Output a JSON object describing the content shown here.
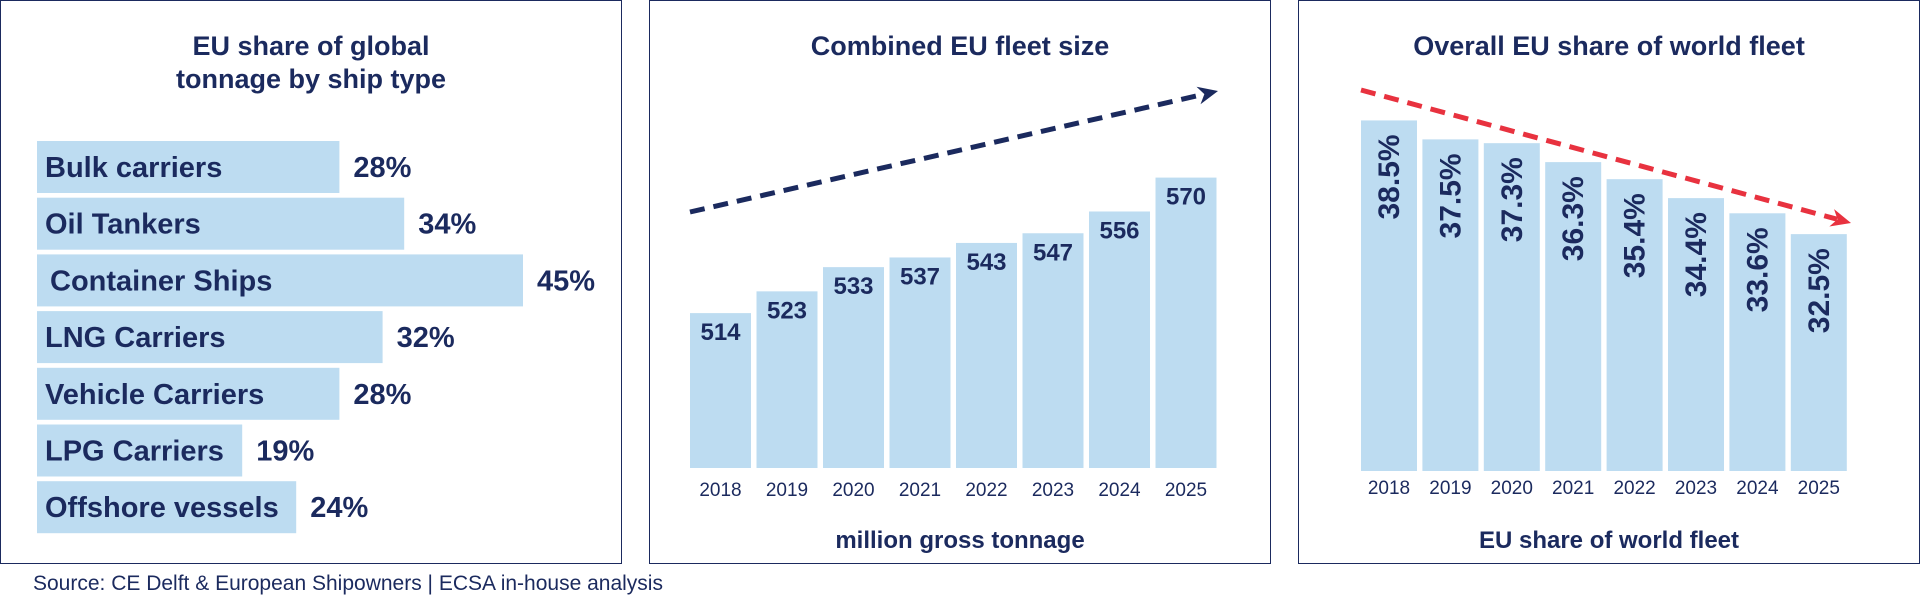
{
  "colors": {
    "bar": "#bddcf1",
    "text": "#1b2a5e",
    "up_arrow": "#1b2a5e",
    "down_arrow": "#e8323f",
    "border": "#1b2a5e"
  },
  "source": "Source: CE Delft & European Shipowners | ECSA in-house analysis",
  "chart_data": [
    {
      "type": "bar",
      "orientation": "horizontal",
      "title_lines": [
        "EU share of global",
        "tonnage by ship type"
      ],
      "categories": [
        "Bulk carriers",
        "Oil Tankers",
        "Container Ships",
        "LNG Carriers",
        "Vehicle Carriers",
        "LPG Carriers",
        "Offshore vessels"
      ],
      "values": [
        28,
        34,
        45,
        32,
        28,
        19,
        24
      ],
      "value_labels": [
        "28%",
        "34%",
        "45%",
        "32%",
        "28%",
        "19%",
        "24%"
      ],
      "unit": "%"
    },
    {
      "type": "bar",
      "title": "Combined EU fleet size",
      "categories": [
        "2018",
        "2019",
        "2020",
        "2021",
        "2022",
        "2023",
        "2024",
        "2025"
      ],
      "values": [
        514,
        523,
        533,
        537,
        543,
        547,
        556,
        570
      ],
      "value_labels": [
        "514",
        "523",
        "533",
        "537",
        "543",
        "547",
        "556",
        "570"
      ],
      "xlabel": "million gross tonnage",
      "trend": "up"
    },
    {
      "type": "bar",
      "title": "Overall EU share of world fleet",
      "categories": [
        "2018",
        "2019",
        "2020",
        "2021",
        "2022",
        "2023",
        "2024",
        "2025"
      ],
      "values": [
        38.5,
        37.5,
        37.3,
        36.3,
        35.4,
        34.4,
        33.6,
        32.5
      ],
      "value_labels": [
        "38.5%",
        "37.5%",
        "37.3%",
        "36.3%",
        "35.4%",
        "34.4%",
        "33.6%",
        "32.5%"
      ],
      "xlabel": "EU share of world fleet",
      "trend": "down"
    }
  ]
}
